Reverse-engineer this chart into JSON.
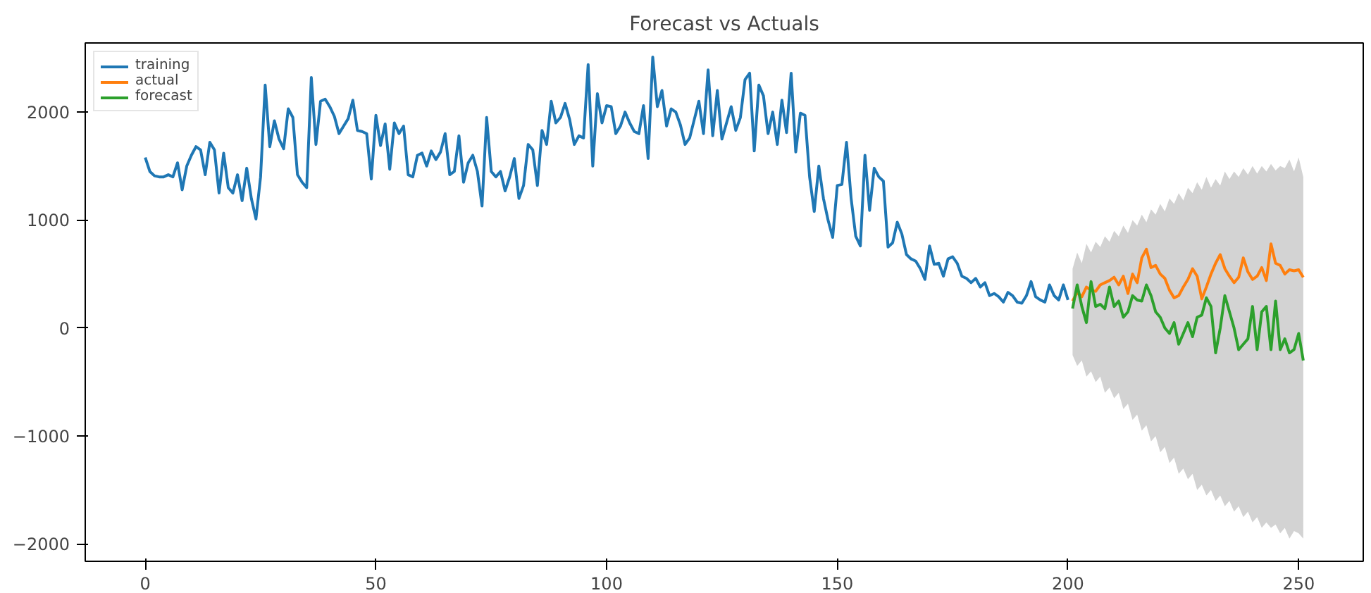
{
  "chart_data": {
    "type": "line",
    "title": "Forecast vs Actuals",
    "xlim": [
      -13,
      264
    ],
    "ylim": [
      -2160,
      2640
    ],
    "xticks": [
      0,
      50,
      100,
      150,
      200,
      250
    ],
    "yticks": [
      {
        "value": -2000,
        "label": "−2000"
      },
      {
        "value": -1000,
        "label": "−1000"
      },
      0,
      1000,
      2000
    ],
    "grid": false,
    "legend": "top left",
    "marker": "none",
    "line_style": "solid",
    "series": [
      {
        "name": "training",
        "color": "#1f77b4",
        "x": [
          0,
          1,
          2,
          3,
          4,
          5,
          6,
          7,
          8,
          9,
          10,
          11,
          12,
          13,
          14,
          15,
          16,
          17,
          18,
          19,
          20,
          21,
          22,
          23,
          24,
          25,
          26,
          27,
          28,
          29,
          30,
          31,
          32,
          33,
          34,
          35,
          36,
          37,
          38,
          39,
          40,
          41,
          42,
          43,
          44,
          45,
          46,
          47,
          48,
          49,
          50,
          51,
          52,
          53,
          54,
          55,
          56,
          57,
          58,
          59,
          60,
          61,
          62,
          63,
          64,
          65,
          66,
          67,
          68,
          69,
          70,
          71,
          72,
          73,
          74,
          75,
          76,
          77,
          78,
          79,
          80,
          81,
          82,
          83,
          84,
          85,
          86,
          87,
          88,
          89,
          90,
          91,
          92,
          93,
          94,
          95,
          96,
          97,
          98,
          99,
          100,
          101,
          102,
          103,
          104,
          105,
          106,
          107,
          108,
          109,
          110,
          111,
          112,
          113,
          114,
          115,
          116,
          117,
          118,
          119,
          120,
          121,
          122,
          123,
          124,
          125,
          126,
          127,
          128,
          129,
          130,
          131,
          132,
          133,
          134,
          135,
          136,
          137,
          138,
          139,
          140,
          141,
          142,
          143,
          144,
          145,
          146,
          147,
          148,
          149,
          150,
          151,
          152,
          153,
          154,
          155,
          156,
          157,
          158,
          159,
          160,
          161,
          162,
          163,
          164,
          165,
          166,
          167,
          168,
          169,
          170,
          171,
          172,
          173,
          174,
          175,
          176,
          177,
          178,
          179,
          180,
          181,
          182,
          183,
          184,
          185,
          186,
          187,
          188,
          189,
          190,
          191,
          192,
          193,
          194,
          195,
          196,
          197,
          198,
          199,
          200
        ],
        "values": [
          1580,
          1450,
          1410,
          1400,
          1400,
          1420,
          1400,
          1530,
          1280,
          1500,
          1600,
          1680,
          1650,
          1420,
          1720,
          1650,
          1250,
          1620,
          1300,
          1250,
          1420,
          1180,
          1480,
          1200,
          1010,
          1400,
          2250,
          1680,
          1920,
          1750,
          1660,
          2030,
          1950,
          1420,
          1350,
          1300,
          2320,
          1700,
          2100,
          2120,
          2050,
          1960,
          1800,
          1870,
          1940,
          2110,
          1830,
          1820,
          1800,
          1380,
          1970,
          1690,
          1890,
          1470,
          1900,
          1800,
          1870,
          1420,
          1400,
          1600,
          1620,
          1500,
          1640,
          1560,
          1630,
          1800,
          1420,
          1450,
          1780,
          1350,
          1530,
          1600,
          1450,
          1130,
          1950,
          1450,
          1400,
          1450,
          1270,
          1400,
          1570,
          1200,
          1320,
          1700,
          1650,
          1320,
          1830,
          1700,
          2100,
          1900,
          1950,
          2080,
          1930,
          1700,
          1780,
          1760,
          2440,
          1500,
          2170,
          1900,
          2060,
          2050,
          1800,
          1870,
          2000,
          1900,
          1820,
          1800,
          2060,
          1570,
          2510,
          2050,
          2200,
          1870,
          2030,
          2000,
          1880,
          1700,
          1760,
          1930,
          2100,
          1800,
          2390,
          1780,
          2200,
          1750,
          1900,
          2050,
          1830,
          1950,
          2300,
          2360,
          1640,
          2250,
          2150,
          1800,
          2000,
          1700,
          2110,
          1810,
          2360,
          1630,
          1990,
          1970,
          1400,
          1080,
          1500,
          1200,
          1000,
          840,
          1320,
          1330,
          1720,
          1200,
          850,
          760,
          1600,
          1090,
          1480,
          1400,
          1360,
          750,
          790,
          980,
          870,
          680,
          640,
          620,
          550,
          450,
          760,
          590,
          600,
          480,
          640,
          660,
          600,
          480,
          460,
          420,
          460,
          380,
          420,
          300,
          320,
          290,
          240,
          330,
          300,
          240,
          230,
          300,
          430,
          290,
          260,
          240,
          400,
          300,
          260,
          400,
          260
        ]
      },
      {
        "name": "actual",
        "color": "#ff7f0e",
        "x": [
          201,
          202,
          203,
          204,
          205,
          206,
          207,
          208,
          209,
          210,
          211,
          212,
          213,
          214,
          215,
          216,
          217,
          218,
          219,
          220,
          221,
          222,
          223,
          224,
          225,
          226,
          227,
          228,
          229,
          230,
          231,
          232,
          233,
          234,
          235,
          236,
          237,
          238,
          239,
          240,
          241,
          242,
          243,
          244,
          245,
          246,
          247,
          248,
          249,
          250,
          251
        ],
        "values": [
          250,
          330,
          290,
          380,
          350,
          340,
          400,
          420,
          440,
          470,
          400,
          480,
          320,
          500,
          420,
          650,
          730,
          560,
          580,
          500,
          460,
          350,
          280,
          300,
          380,
          450,
          550,
          480,
          270,
          380,
          500,
          600,
          680,
          550,
          480,
          420,
          470,
          650,
          520,
          450,
          480,
          560,
          440,
          780,
          600,
          580,
          500,
          540,
          530,
          540,
          470
        ]
      },
      {
        "name": "forecast",
        "color": "#2ca02c",
        "x": [
          201,
          202,
          203,
          204,
          205,
          206,
          207,
          208,
          209,
          210,
          211,
          212,
          213,
          214,
          215,
          216,
          217,
          218,
          219,
          220,
          221,
          222,
          223,
          224,
          225,
          226,
          227,
          228,
          229,
          230,
          231,
          232,
          233,
          234,
          235,
          236,
          237,
          238,
          239,
          240,
          241,
          242,
          243,
          244,
          245,
          246,
          247,
          248,
          249,
          250,
          251
        ],
        "values": [
          180,
          400,
          200,
          50,
          430,
          200,
          220,
          180,
          380,
          200,
          250,
          100,
          150,
          300,
          260,
          250,
          400,
          300,
          150,
          100,
          0,
          -50,
          50,
          -150,
          -50,
          50,
          -80,
          100,
          120,
          280,
          200,
          -230,
          0,
          300,
          150,
          0,
          -200,
          -150,
          -100,
          200,
          -200,
          150,
          200,
          -200,
          250,
          -200,
          -100,
          -230,
          -200,
          -50,
          -300
        ],
        "upper": [
          550,
          700,
          600,
          780,
          700,
          800,
          750,
          850,
          800,
          900,
          850,
          950,
          880,
          1000,
          950,
          1050,
          980,
          1100,
          1050,
          1150,
          1080,
          1200,
          1150,
          1250,
          1180,
          1300,
          1250,
          1350,
          1280,
          1400,
          1300,
          1380,
          1320,
          1450,
          1380,
          1450,
          1400,
          1480,
          1420,
          1500,
          1430,
          1500,
          1450,
          1520,
          1460,
          1500,
          1480,
          1560,
          1450,
          1580,
          1400
        ],
        "lower": [
          -250,
          -350,
          -300,
          -450,
          -400,
          -500,
          -450,
          -600,
          -550,
          -650,
          -600,
          -750,
          -700,
          -850,
          -800,
          -950,
          -900,
          -1050,
          -1000,
          -1150,
          -1100,
          -1250,
          -1200,
          -1350,
          -1300,
          -1400,
          -1350,
          -1500,
          -1450,
          -1550,
          -1500,
          -1600,
          -1550,
          -1650,
          -1600,
          -1700,
          -1650,
          -1750,
          -1700,
          -1800,
          -1750,
          -1850,
          -1800,
          -1850,
          -1820,
          -1900,
          -1850,
          -1950,
          -1880,
          -1900,
          -1950
        ]
      }
    ]
  }
}
